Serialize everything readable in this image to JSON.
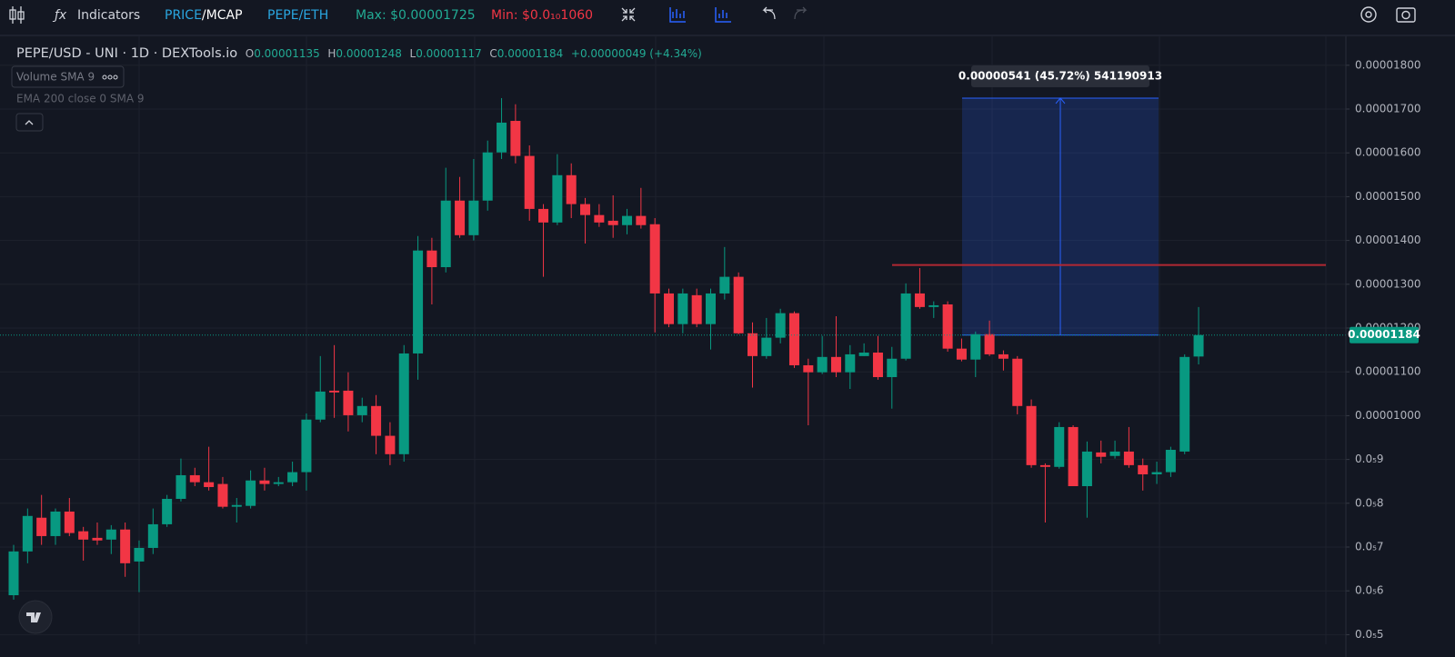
{
  "toolbar": {
    "indicators": "Indicators",
    "price": "PRICE",
    "mcap": "/MCAP",
    "pair": "PEPE/ETH",
    "max": "Max: $0.00001725",
    "min": "Min: $0.0₁₀1060"
  },
  "header": {
    "symbol": "PEPE/USD - UNI · 1D · DEXTools.io",
    "o_label": "O",
    "o": "0.00001135",
    "h_label": "H",
    "h": "0.00001248",
    "l_label": "L",
    "l": "0.00001117",
    "c_label": "C",
    "c": "0.00001184",
    "change": "+0.00000049 (+4.34%)"
  },
  "indicators": [
    "Volume SMA 9",
    "EMA 200 close 0 SMA 9"
  ],
  "chart_data": {
    "type": "candlestick",
    "up_color": "#089981",
    "down_color": "#f23645",
    "open": [
      5.9e-06,
      6.9e-06,
      7.67e-06,
      7.25e-06,
      7.81e-06,
      7.36e-06,
      7.21e-06,
      7.17e-06,
      7.4e-06,
      6.67e-06,
      6.98e-06,
      7.52e-06,
      8.1e-06,
      8.64e-06,
      8.48e-06,
      8.44e-06,
      7.92e-06,
      7.94e-06,
      8.52e-06,
      8.44e-06,
      8.48e-06,
      8.71e-06,
      9.91e-06,
      1.057e-05,
      1.057e-05,
      1.001e-05,
      1.022e-05,
      9.54e-06,
      9.12e-06,
      1.142e-05,
      1.377e-05,
      1.339e-05,
      1.491e-05,
      1.412e-05,
      1.491e-05,
      1.601e-05,
      1.673e-05,
      1.593e-05,
      1.472e-05,
      1.441e-05,
      1.549e-05,
      1.483e-05,
      1.458e-05,
      1.445e-05,
      1.435e-05,
      1.456e-05,
      1.437e-05,
      1.279e-05,
      1.209e-05,
      1.275e-05,
      1.209e-05,
      1.279e-05,
      1.317e-05,
      1.188e-05,
      1.136e-05,
      1.178e-05,
      1.234e-05,
      1.115e-05,
      1.099e-05,
      1.134e-05,
      1.099e-05,
      1.136e-05,
      1.144e-05,
      1.088e-05,
      1.13e-05,
      1.279e-05,
      1.248e-05,
      1.254e-05,
      1.153e-05,
      1.128e-05,
      1.186e-05,
      1.14e-05,
      1.13e-05,
      1.022e-05,
      8.87e-06,
      8.83e-06,
      9.74e-06,
      8.39e-06,
      9.16e-06,
      9.08e-06,
      9.18e-06,
      8.87e-06,
      8.66e-06,
      8.71e-06,
      9.18e-06,
      1.135e-05
    ],
    "high": [
      7.05e-06,
      7.88e-06,
      8.19e-06,
      7.88e-06,
      8.12e-06,
      7.46e-06,
      7.56e-06,
      7.5e-06,
      7.56e-06,
      7.15e-06,
      7.88e-06,
      8.19e-06,
      9.02e-06,
      8.81e-06,
      9.29e-06,
      8.6e-06,
      8.12e-06,
      8.75e-06,
      8.81e-06,
      8.6e-06,
      8.95e-06,
      1.005e-05,
      1.136e-05,
      1.161e-05,
      1.099e-05,
      1.041e-05,
      1.047e-05,
      9.85e-06,
      1.161e-05,
      1.41e-05,
      1.406e-05,
      1.566e-05,
      1.545e-05,
      1.586e-05,
      1.628e-05,
      1.725e-05,
      1.711e-05,
      1.617e-05,
      1.483e-05,
      1.597e-05,
      1.576e-05,
      1.497e-05,
      1.483e-05,
      1.503e-05,
      1.472e-05,
      1.52e-05,
      1.451e-05,
      1.29e-05,
      1.29e-05,
      1.29e-05,
      1.29e-05,
      1.385e-05,
      1.327e-05,
      1.213e-05,
      1.223e-05,
      1.244e-05,
      1.238e-05,
      1.13e-05,
      1.182e-05,
      1.227e-05,
      1.161e-05,
      1.165e-05,
      1.182e-05,
      1.157e-05,
      1.302e-05,
      1.337e-05,
      1.261e-05,
      1.261e-05,
      1.176e-05,
      1.192e-05,
      1.217e-05,
      1.149e-05,
      1.136e-05,
      1.037e-05,
      8.91e-06,
      9.85e-06,
      9.78e-06,
      9.41e-06,
      9.43e-06,
      9.43e-06,
      9.74e-06,
      9.02e-06,
      8.95e-06,
      9.29e-06,
      1.14e-05,
      1.248e-05
    ],
    "low": [
      5.8e-06,
      6.63e-06,
      7.05e-06,
      7.05e-06,
      7.25e-06,
      6.69e-06,
      7.05e-06,
      6.84e-06,
      6.32e-06,
      5.97e-06,
      6.84e-06,
      7.46e-06,
      8.04e-06,
      8.39e-06,
      8.29e-06,
      7.88e-06,
      7.56e-06,
      7.88e-06,
      8.29e-06,
      8.39e-06,
      8.39e-06,
      8.29e-06,
      9.85e-06,
      9.95e-06,
      9.64e-06,
      9.85e-06,
      9.12e-06,
      8.87e-06,
      8.95e-06,
      1.082e-05,
      1.254e-05,
      1.327e-05,
      1.406e-05,
      1.4e-05,
      1.468e-05,
      1.586e-05,
      1.576e-05,
      1.445e-05,
      1.317e-05,
      1.435e-05,
      1.451e-05,
      1.393e-05,
      1.431e-05,
      1.406e-05,
      1.414e-05,
      1.427e-05,
      1.19e-05,
      1.202e-05,
      1.188e-05,
      1.202e-05,
      1.151e-05,
      1.265e-05,
      1.186e-05,
      1.064e-05,
      1.13e-05,
      1.165e-05,
      1.109e-05,
      9.78e-06,
      1.095e-05,
      1.088e-05,
      1.061e-05,
      1.136e-05,
      1.082e-05,
      1.016e-05,
      1.126e-05,
      1.244e-05,
      1.223e-05,
      1.146e-05,
      1.124e-05,
      1.088e-05,
      1.136e-05,
      1.103e-05,
      1.003e-05,
      8.81e-06,
      7.56e-06,
      8.79e-06,
      8.39e-06,
      7.67e-06,
      8.91e-06,
      9.02e-06,
      8.81e-06,
      8.29e-06,
      8.44e-06,
      8.6e-06,
      9.12e-06,
      1.117e-05
    ],
    "close": [
      6.9e-06,
      7.71e-06,
      7.25e-06,
      7.81e-06,
      7.32e-06,
      7.17e-06,
      7.15e-06,
      7.4e-06,
      6.63e-06,
      6.98e-06,
      7.52e-06,
      8.1e-06,
      8.64e-06,
      8.48e-06,
      8.37e-06,
      7.92e-06,
      7.96e-06,
      8.52e-06,
      8.44e-06,
      8.48e-06,
      8.71e-06,
      9.91e-06,
      1.055e-05,
      1.053e-05,
      1.001e-05,
      1.022e-05,
      9.54e-06,
      9.12e-06,
      1.142e-05,
      1.377e-05,
      1.339e-05,
      1.491e-05,
      1.412e-05,
      1.491e-05,
      1.601e-05,
      1.669e-05,
      1.593e-05,
      1.472e-05,
      1.441e-05,
      1.549e-05,
      1.483e-05,
      1.458e-05,
      1.441e-05,
      1.435e-05,
      1.456e-05,
      1.435e-05,
      1.279e-05,
      1.209e-05,
      1.279e-05,
      1.209e-05,
      1.279e-05,
      1.317e-05,
      1.188e-05,
      1.136e-05,
      1.178e-05,
      1.234e-05,
      1.115e-05,
      1.099e-05,
      1.134e-05,
      1.099e-05,
      1.14e-05,
      1.144e-05,
      1.088e-05,
      1.13e-05,
      1.279e-05,
      1.248e-05,
      1.252e-05,
      1.153e-05,
      1.128e-05,
      1.186e-05,
      1.14e-05,
      1.13e-05,
      1.022e-05,
      8.87e-06,
      8.83e-06,
      9.74e-06,
      8.39e-06,
      9.18e-06,
      9.06e-06,
      9.18e-06,
      8.87e-06,
      8.66e-06,
      8.71e-06,
      9.22e-06,
      1.134e-05,
      1.184e-05
    ],
    "ylim": [
      4.78e-06,
      1.866e-05
    ],
    "yticks": [
      {
        "value": 1.8e-05,
        "label": "0.00001800"
      },
      {
        "value": 1.7e-05,
        "label": "0.00001700"
      },
      {
        "value": 1.6e-05,
        "label": "0.00001600"
      },
      {
        "value": 1.5e-05,
        "label": "0.00001500"
      },
      {
        "value": 1.4e-05,
        "label": "0.00001400"
      },
      {
        "value": 1.3e-05,
        "label": "0.00001300"
      },
      {
        "value": 1.2e-05,
        "label": "0.00001200"
      },
      {
        "value": 1.1e-05,
        "label": "0.00001100"
      },
      {
        "value": 1e-05,
        "label": "0.00001000"
      },
      {
        "value": 9e-06,
        "label": "0.0₅9"
      },
      {
        "value": 8e-06,
        "label": "0.0₅8"
      },
      {
        "value": 7e-06,
        "label": "0.0₅7"
      },
      {
        "value": 6e-06,
        "label": "0.0₅6"
      },
      {
        "value": 5e-06,
        "label": "0.0₅5"
      }
    ],
    "grid": true,
    "price_label": "0.00001184",
    "hline": {
      "value": 1.344e-05,
      "color": "#b22833"
    },
    "measure": {
      "from": 1.184e-05,
      "to": 1.725e-05,
      "label": "0.00000541 (45.72%) 541190913"
    }
  }
}
